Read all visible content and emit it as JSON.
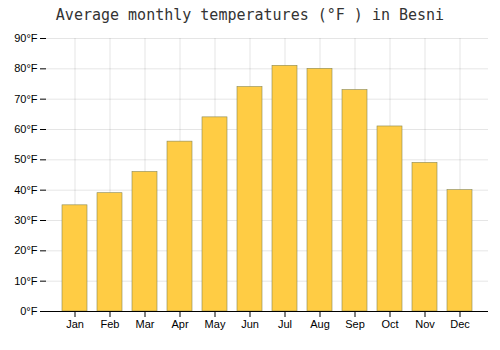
{
  "chart_data": {
    "type": "bar",
    "title": "Average monthly temperatures (°F ) in Besni",
    "categories": [
      "Jan",
      "Feb",
      "Mar",
      "Apr",
      "May",
      "Jun",
      "Jul",
      "Aug",
      "Sep",
      "Oct",
      "Nov",
      "Dec"
    ],
    "values": [
      35,
      39,
      46,
      56,
      64,
      74,
      81,
      80,
      73,
      61,
      49,
      40
    ],
    "color": "#FFCC44",
    "ylim": [
      0,
      90
    ],
    "yticks": [
      {
        "value": 0,
        "label": "0°F"
      },
      {
        "value": 10,
        "label": "10°F"
      },
      {
        "value": 20,
        "label": "20°F"
      },
      {
        "value": 30,
        "label": "30°F"
      },
      {
        "value": 40,
        "label": "40°F"
      },
      {
        "value": 50,
        "label": "50°F"
      },
      {
        "value": 60,
        "label": "60°F"
      },
      {
        "value": 70,
        "label": "70°F"
      },
      {
        "value": 80,
        "label": "80°F"
      },
      {
        "value": 90,
        "label": "90°F"
      }
    ],
    "grid": true
  }
}
